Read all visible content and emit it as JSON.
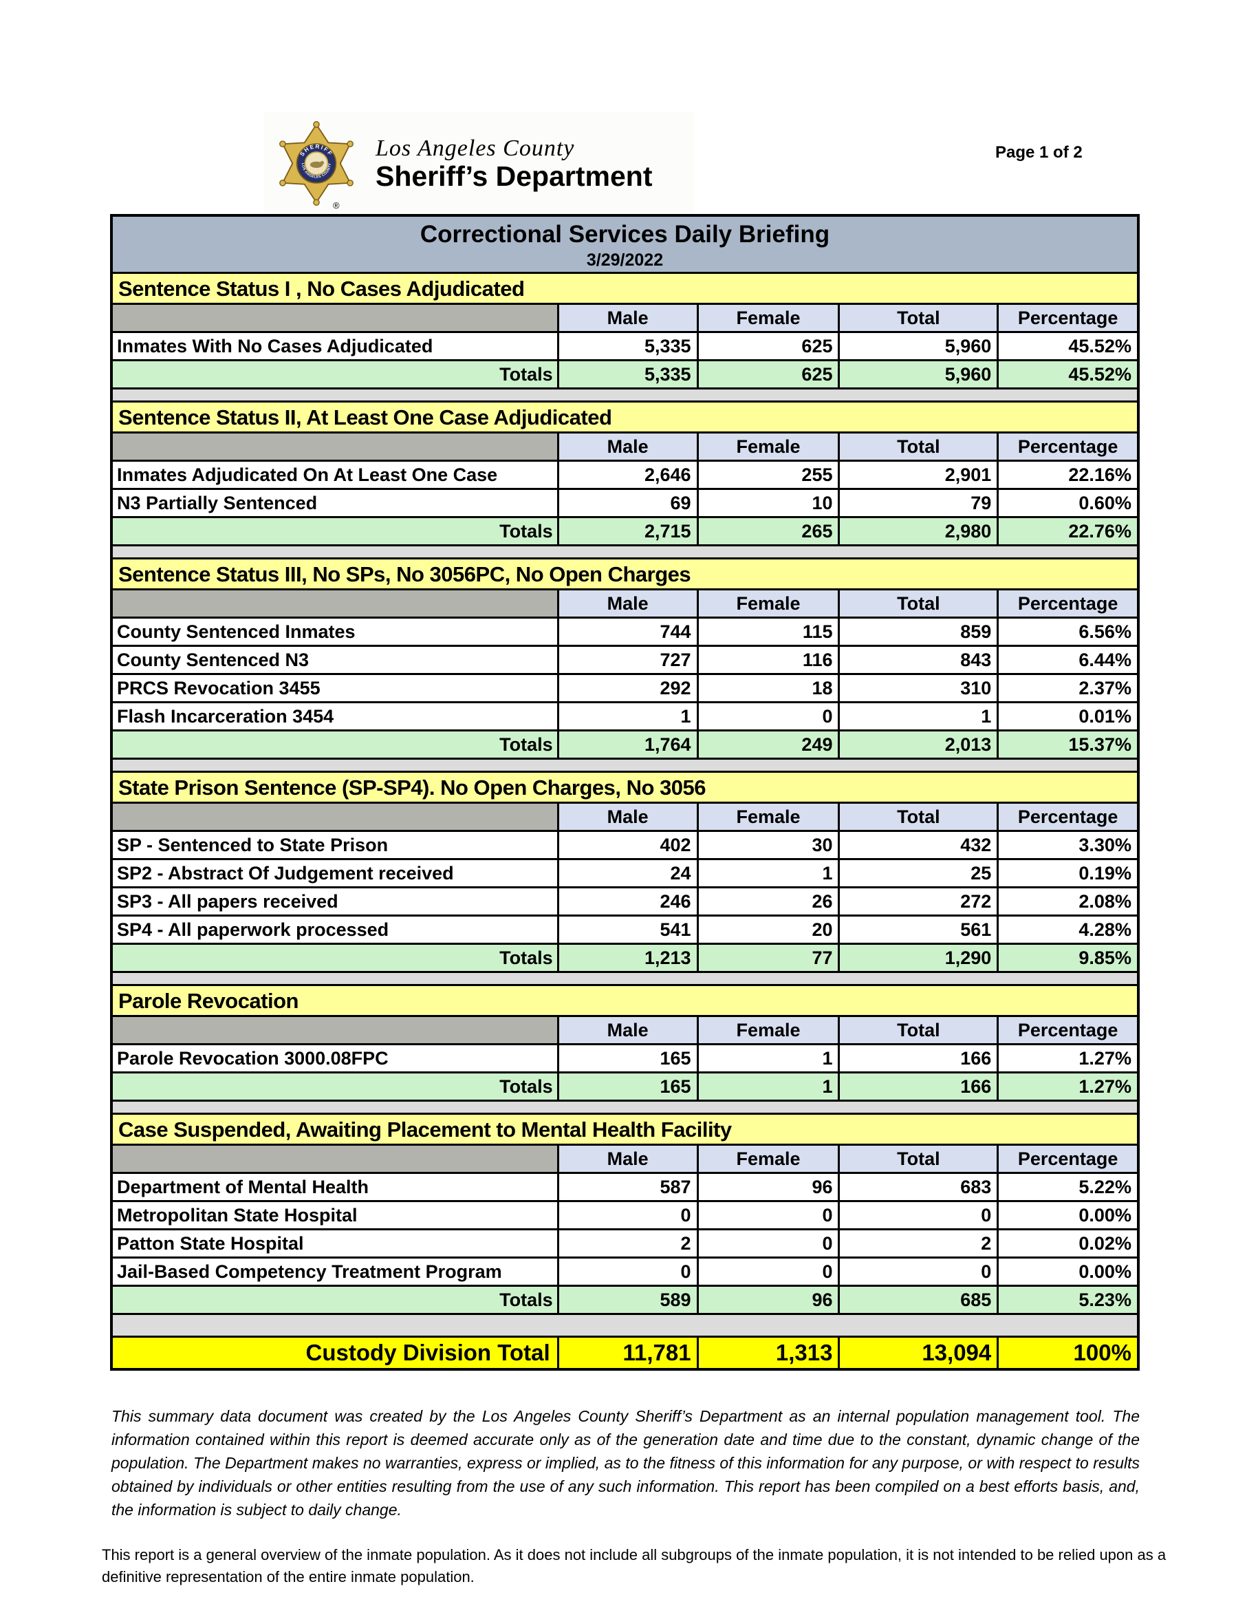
{
  "header": {
    "agency_line1": "Los Angeles County",
    "agency_line2": "Sheriff’s Department",
    "page_number": "Page 1 of 2",
    "registered_mark": "®",
    "badge_ring_top": "SHERIFF",
    "badge_ring_bottom": "• LOS ANGELES COUNTY •"
  },
  "report": {
    "title": "Correctional Services Daily Briefing",
    "date": "3/29/2022",
    "columns": [
      "Male",
      "Female",
      "Total",
      "Percentage"
    ],
    "sections": [
      {
        "title": "Sentence Status I , No Cases Adjudicated",
        "rows": [
          [
            "Inmates With No Cases Adjudicated",
            "5,335",
            "625",
            "5,960",
            "45.52%"
          ]
        ],
        "totals": [
          "Totals",
          "5,335",
          "625",
          "5,960",
          "45.52%"
        ]
      },
      {
        "title": "Sentence Status II, At Least One Case Adjudicated",
        "rows": [
          [
            "Inmates Adjudicated On At Least One Case",
            "2,646",
            "255",
            "2,901",
            "22.16%"
          ],
          [
            "N3 Partially Sentenced",
            "69",
            "10",
            "79",
            "0.60%"
          ]
        ],
        "totals": [
          "Totals",
          "2,715",
          "265",
          "2,980",
          "22.76%"
        ]
      },
      {
        "title": "Sentence Status III, No SPs, No 3056PC, No Open Charges",
        "rows": [
          [
            "County Sentenced Inmates",
            "744",
            "115",
            "859",
            "6.56%"
          ],
          [
            "County Sentenced N3",
            "727",
            "116",
            "843",
            "6.44%"
          ],
          [
            "PRCS Revocation 3455",
            "292",
            "18",
            "310",
            "2.37%"
          ],
          [
            "Flash Incarceration 3454",
            "1",
            "0",
            "1",
            "0.01%"
          ]
        ],
        "totals": [
          "Totals",
          "1,764",
          "249",
          "2,013",
          "15.37%"
        ]
      },
      {
        "title": "State Prison Sentence (SP-SP4). No Open Charges, No 3056",
        "rows": [
          [
            "SP - Sentenced to State Prison",
            "402",
            "30",
            "432",
            "3.30%"
          ],
          [
            "SP2 - Abstract Of Judgement received",
            "24",
            "1",
            "25",
            "0.19%"
          ],
          [
            "SP3 - All papers received",
            "246",
            "26",
            "272",
            "2.08%"
          ],
          [
            "SP4 - All paperwork processed",
            "541",
            "20",
            "561",
            "4.28%"
          ]
        ],
        "totals": [
          "Totals",
          "1,213",
          "77",
          "1,290",
          "9.85%"
        ]
      },
      {
        "title": "Parole Revocation",
        "rows": [
          [
            "Parole Revocation 3000.08FPC",
            "165",
            "1",
            "166",
            "1.27%"
          ]
        ],
        "totals": [
          "Totals",
          "165",
          "1",
          "166",
          "1.27%"
        ]
      },
      {
        "title": "Case Suspended, Awaiting Placement to Mental Health Facility",
        "rows": [
          [
            "Department of Mental Health",
            "587",
            "96",
            "683",
            "5.22%"
          ],
          [
            "Metropolitan State Hospital",
            "0",
            "0",
            "0",
            "0.00%"
          ],
          [
            "Patton State Hospital",
            "2",
            "0",
            "2",
            "0.02%"
          ],
          [
            "Jail-Based Competency Treatment Program",
            "0",
            "0",
            "0",
            "0.00%"
          ]
        ],
        "totals": [
          "Totals",
          "589",
          "96",
          "685",
          "5.23%"
        ]
      }
    ],
    "grand_total": [
      "Custody Division Total",
      "11,781",
      "1,313",
      "13,094",
      "100%"
    ]
  },
  "footer": {
    "disclaimer": "This summary data document was created by the Los Angeles County Sheriff’s Department as an internal population management tool.  The information contained within this report is deemed accurate only as of the generation date and time due to the constant, dynamic change of the population.  The Department makes no warranties, express or implied, as to the fitness of this information for any purpose, or with respect to results obtained by individuals or other entities resulting from the use of any such information.  This report has been compiled on a best efforts basis, and, the information is subject to daily change.",
    "note": "This report is a general overview of the inmate population.  As it does not include all subgroups of the inmate population, it is not intended to be relied upon as a definitive representation of the entire inmate population."
  },
  "colors": {
    "title_bar": "#a9b7c9",
    "section_header_yellow": "#ffff99",
    "column_header_lavender": "#d7deef",
    "column_header_gray_cell": "#b3b3ae",
    "totals_green": "#ccf2cc",
    "spacer_gray": "#dcdcdc",
    "grand_total_yellow": "#ffff00",
    "border_black": "#000000",
    "badge_gold": "#d9b64e",
    "badge_navy": "#263069"
  }
}
